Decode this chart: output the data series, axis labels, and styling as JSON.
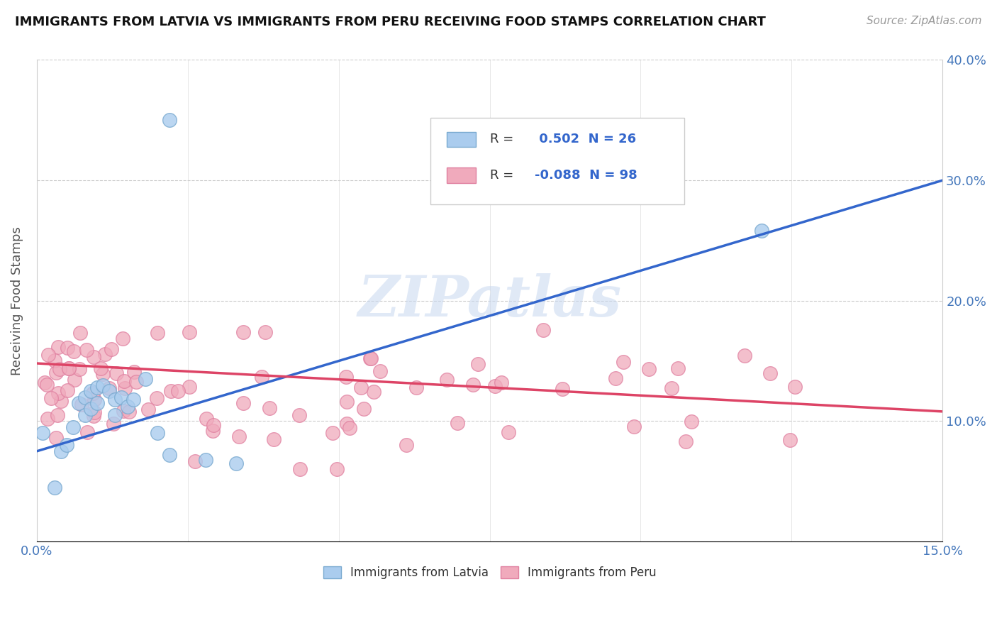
{
  "title": "IMMIGRANTS FROM LATVIA VS IMMIGRANTS FROM PERU RECEIVING FOOD STAMPS CORRELATION CHART",
  "source": "Source: ZipAtlas.com",
  "ylabel": "Receiving Food Stamps",
  "x_min": 0.0,
  "x_max": 0.15,
  "y_min": 0.0,
  "y_max": 0.4,
  "legend_r_latvia": "0.502",
  "legend_n_latvia": "26",
  "legend_r_peru": "-0.088",
  "legend_n_peru": "98",
  "color_latvia_face": "#aaccee",
  "color_latvia_edge": "#7aaad0",
  "color_peru_face": "#f0aabc",
  "color_peru_edge": "#e080a0",
  "color_line_latvia": "#3366cc",
  "color_line_peru": "#dd4466",
  "watermark": "ZIPatlas",
  "lat_trend_y0": 0.075,
  "lat_trend_y1": 0.3,
  "peru_trend_y0": 0.148,
  "peru_trend_y1": 0.108
}
